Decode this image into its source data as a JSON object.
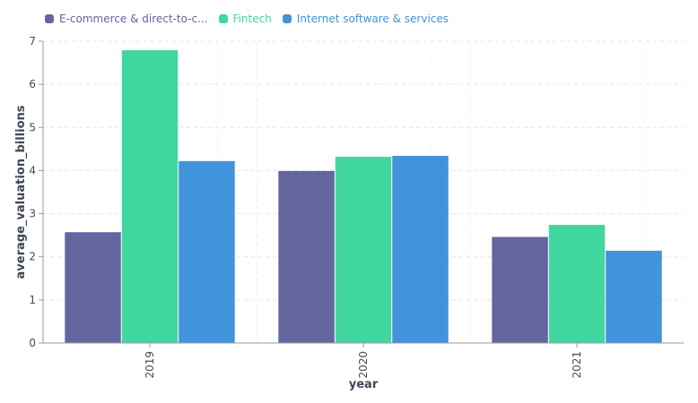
{
  "chart_data": {
    "type": "bar",
    "categories": [
      "2019",
      "2020",
      "2021"
    ],
    "series": [
      {
        "name": "E-commerce & direct-to-c...",
        "values": [
          2.57,
          3.99,
          2.46
        ],
        "color": "#63669f"
      },
      {
        "name": "Fintech",
        "values": [
          6.79,
          4.32,
          2.74
        ],
        "color": "#42d7a0"
      },
      {
        "name": "Internet software & services",
        "values": [
          4.22,
          4.34,
          2.14
        ],
        "color": "#4193db"
      }
    ],
    "xlabel": "year",
    "ylabel": "average_valuation_billions",
    "ylim": [
      0,
      7
    ],
    "yticks": [
      0,
      1,
      2,
      3,
      4,
      5,
      6,
      7
    ],
    "grid": true,
    "legend_position": "top-left"
  }
}
